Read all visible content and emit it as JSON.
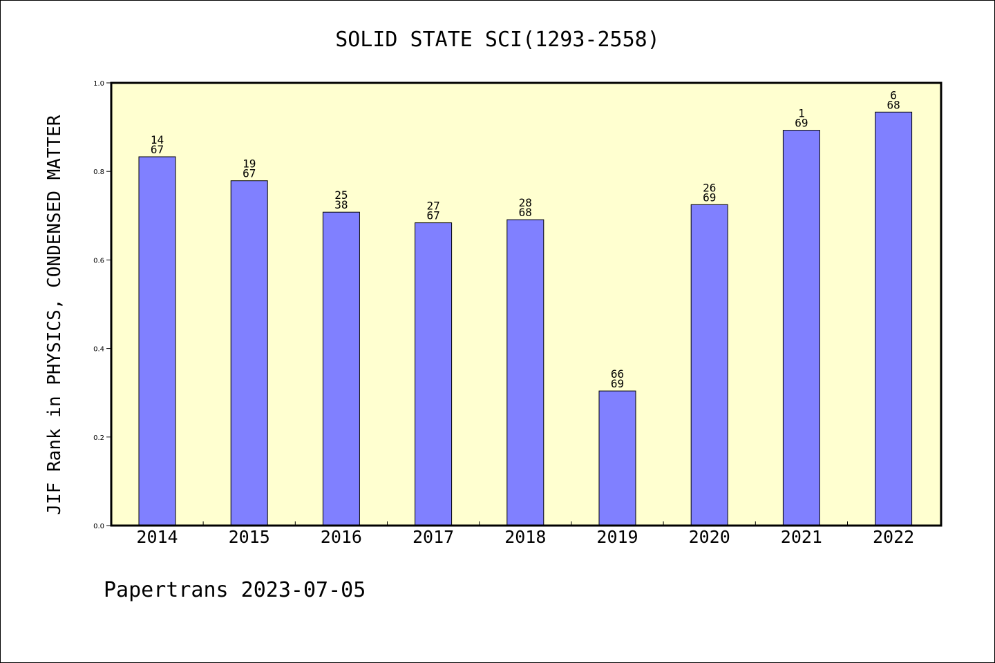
{
  "chart_data": {
    "type": "bar",
    "title": "SOLID STATE SCI(1293-2558)",
    "xlabel": "",
    "ylabel": "JIF Rank in PHYSICS, CONDENSED MATTER",
    "ylim": [
      0,
      1.0
    ],
    "yticks": [
      "0.0",
      "0.2",
      "0.4",
      "0.6",
      "0.8",
      "1.0"
    ],
    "categories": [
      "2014",
      "2015",
      "2016",
      "2017",
      "2018",
      "2019",
      "2020",
      "2021",
      "2022"
    ],
    "values": [
      0.833,
      0.779,
      0.708,
      0.684,
      0.691,
      0.304,
      0.725,
      0.893,
      0.934
    ],
    "rank_labels": [
      {
        "rank": "14",
        "total": "67"
      },
      {
        "rank": "19",
        "total": "67"
      },
      {
        "rank": "25",
        "total": "38"
      },
      {
        "rank": "27",
        "total": "67"
      },
      {
        "rank": "28",
        "total": "68"
      },
      {
        "rank": "66",
        "total": "69"
      },
      {
        "rank": "26",
        "total": "69"
      },
      {
        "rank": "1",
        "total": "69"
      },
      {
        "rank": "6",
        "total": "68"
      }
    ],
    "grid": false,
    "legend": "none",
    "colors": {
      "bar_fill": "#8080ff",
      "plot_background": "#ffffd0",
      "axis": "#000000"
    }
  },
  "footer": {
    "text": "Papertrans 2023-07-05"
  }
}
